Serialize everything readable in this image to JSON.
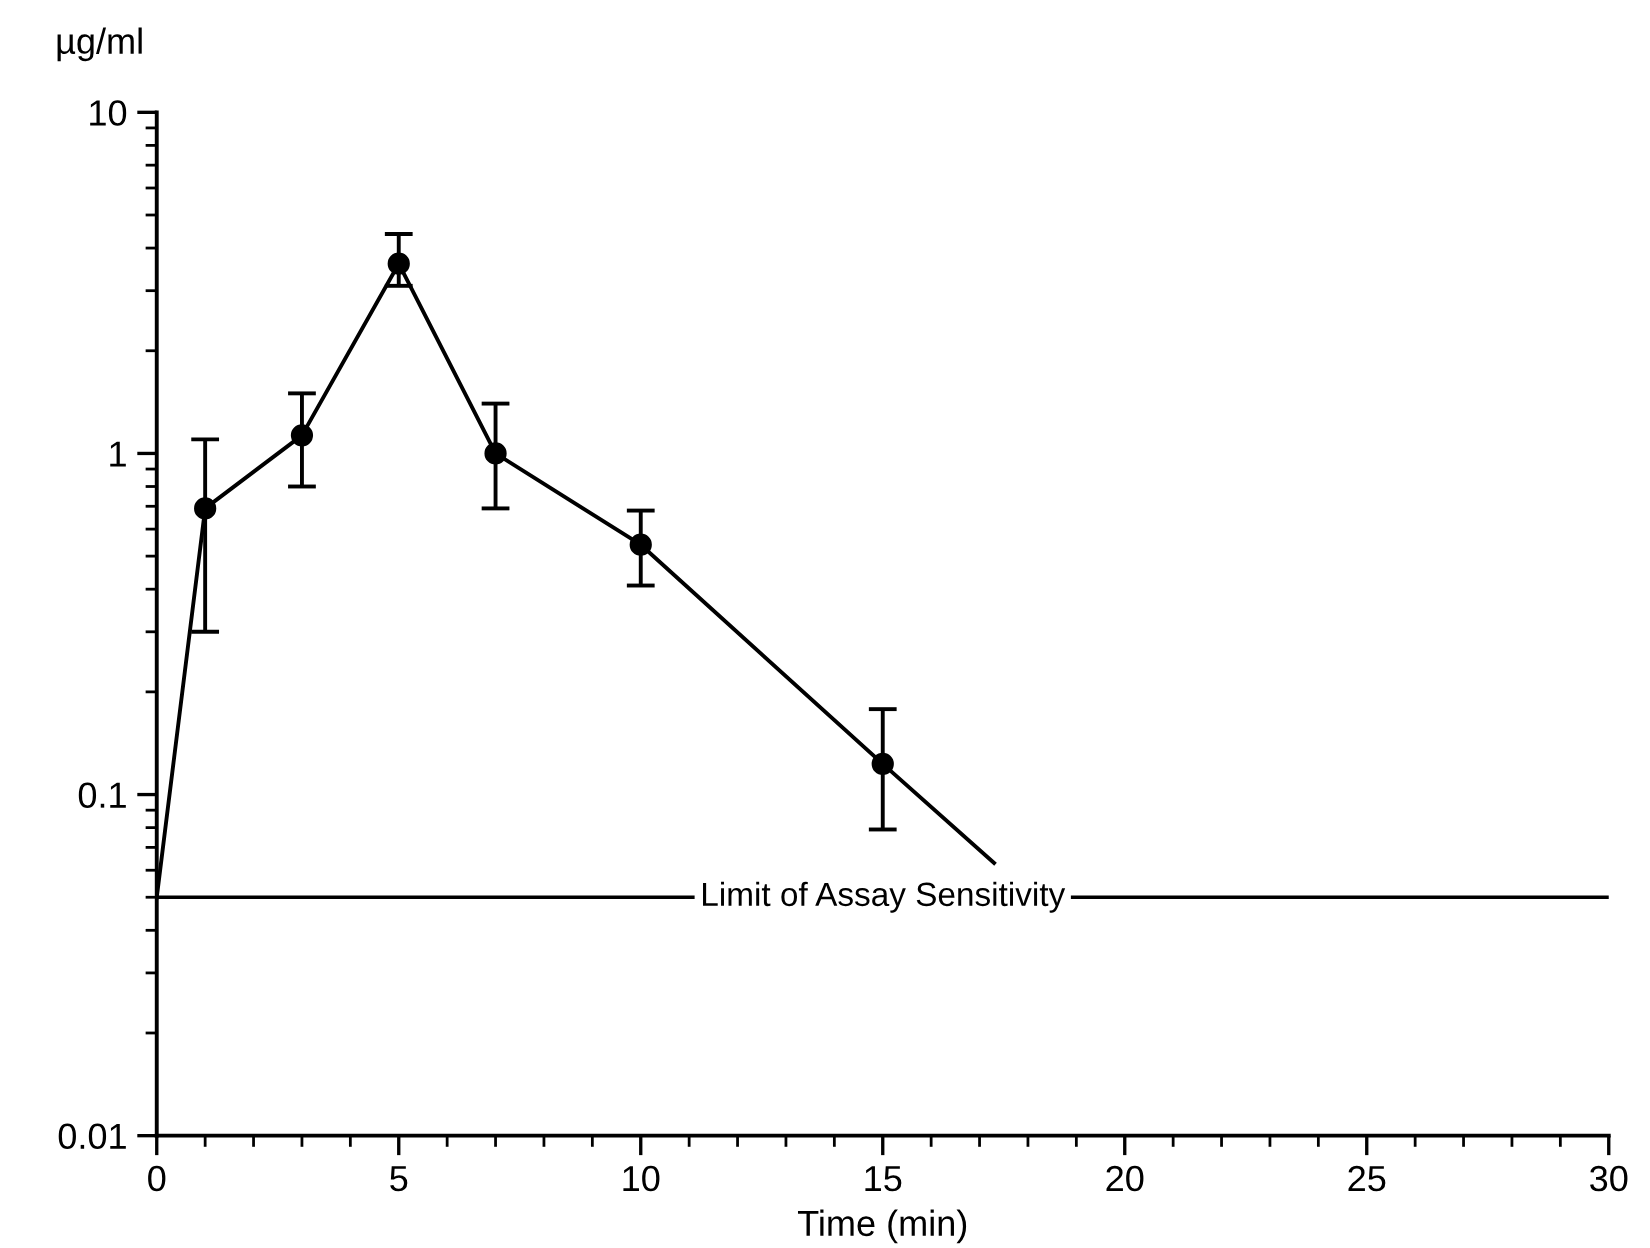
{
  "chart_data": {
    "type": "line",
    "xlabel": "Time (min)",
    "ylabel": "µg/ml",
    "xlim": [
      0,
      30
    ],
    "xticks": [
      0,
      5,
      10,
      15,
      20,
      25,
      30
    ],
    "ylim": [
      0.01,
      10
    ],
    "yticks": [
      0.01,
      0.1,
      1,
      10
    ],
    "log": "y",
    "grid": false,
    "legend": false,
    "series": [
      {
        "color": "#000000",
        "marker": "none",
        "x": [
          0,
          1,
          3,
          5,
          7,
          10,
          15,
          17.3
        ],
        "values": [
          0.05,
          0.69,
          1.13,
          3.6,
          1.0,
          0.54,
          0.123,
          0.063
        ]
      },
      {
        "type": "scatter",
        "color": "#000000",
        "marker": "circle",
        "x": [
          1,
          3,
          5,
          7,
          10,
          15
        ],
        "values": [
          0.69,
          1.13,
          3.6,
          1.0,
          0.54,
          0.123
        ],
        "errors": [
          [
            0.3,
            1.1
          ],
          [
            0.8,
            1.5
          ],
          [
            3.1,
            4.4
          ],
          [
            0.69,
            1.4
          ],
          [
            0.41,
            0.68
          ],
          [
            0.079,
            0.178
          ]
        ]
      }
    ],
    "ref_lines": [
      {
        "axis": "y",
        "value": 0.05,
        "label": "Limit of Assay Sensitivity",
        "color": "#000000",
        "line_style": "solid"
      }
    ]
  }
}
